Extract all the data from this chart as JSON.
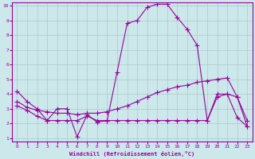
{
  "xlabel": "Windchill (Refroidissement éolien,°C)",
  "xlim": [
    -0.5,
    23.5
  ],
  "ylim": [
    0.8,
    10.2
  ],
  "xticks": [
    0,
    1,
    2,
    3,
    4,
    5,
    6,
    7,
    8,
    9,
    10,
    11,
    12,
    13,
    14,
    15,
    16,
    17,
    18,
    19,
    20,
    21,
    22,
    23
  ],
  "yticks": [
    1,
    2,
    3,
    4,
    5,
    6,
    7,
    8,
    9,
    10
  ],
  "bg_color": "#cce8ea",
  "line_color": "#990099",
  "grid_color": "#aac8cc",
  "series1_x": [
    0,
    1,
    2,
    3,
    4,
    5,
    6,
    7,
    8,
    9,
    10,
    11,
    12,
    13,
    14,
    15,
    16,
    17,
    18,
    19,
    20,
    21,
    22,
    23
  ],
  "series1_y": [
    4.2,
    3.5,
    3.0,
    2.2,
    3.0,
    3.0,
    1.1,
    2.6,
    2.1,
    2.2,
    5.5,
    8.8,
    9.0,
    9.9,
    10.1,
    10.1,
    9.2,
    8.4,
    7.3,
    2.2,
    4.0,
    4.0,
    2.4,
    1.8
  ],
  "series2_x": [
    0,
    1,
    2,
    3,
    4,
    5,
    6,
    7,
    8,
    9,
    10,
    11,
    12,
    13,
    14,
    15,
    16,
    17,
    18,
    19,
    20,
    21,
    22,
    23
  ],
  "series2_y": [
    3.5,
    3.1,
    2.9,
    2.8,
    2.7,
    2.7,
    2.6,
    2.7,
    2.7,
    2.8,
    3.0,
    3.2,
    3.5,
    3.8,
    4.1,
    4.3,
    4.5,
    4.6,
    4.8,
    4.9,
    5.0,
    5.1,
    3.8,
    2.2
  ],
  "series3_x": [
    0,
    1,
    2,
    3,
    4,
    5,
    6,
    7,
    8,
    9,
    10,
    11,
    12,
    13,
    14,
    15,
    16,
    17,
    18,
    19,
    20,
    21,
    22,
    23
  ],
  "series3_y": [
    3.2,
    2.9,
    2.5,
    2.2,
    2.2,
    2.2,
    2.2,
    2.5,
    2.2,
    2.2,
    2.2,
    2.2,
    2.2,
    2.2,
    2.2,
    2.2,
    2.2,
    2.2,
    2.2,
    2.2,
    3.8,
    4.0,
    3.8,
    1.8
  ]
}
